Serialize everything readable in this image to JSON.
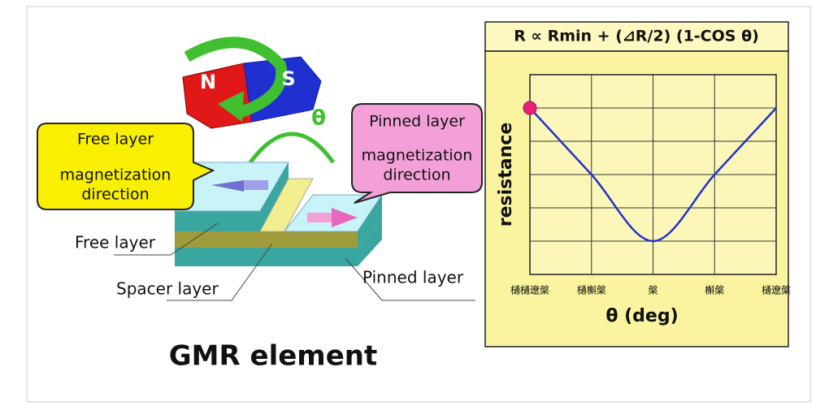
{
  "diagram": {
    "title": "GMR element",
    "theta": "θ",
    "magnet": {
      "n": "N",
      "s": "S"
    },
    "callouts": [
      {
        "lines": [
          "Free layer",
          "magnetization",
          "direction"
        ]
      },
      {
        "lines": [
          "Pinned layer",
          "magnetization",
          "direction"
        ]
      }
    ],
    "labels": [
      "Free layer",
      "Spacer layer",
      "Pinned layer"
    ]
  },
  "chart_data": {
    "type": "line",
    "title": "R ∝ Rmin + (⊿R/2) (1-COS θ)",
    "y_label": "resistance",
    "x_label": "θ (deg)",
    "categories": [
      "樋樋遼槃",
      "樋槲槃",
      "槃",
      "槲槃",
      "樋遼槃"
    ],
    "series": [
      {
        "color": "#2233cc",
        "values": [
          5,
          3,
          1,
          3,
          5
        ]
      }
    ],
    "ylim": [
      0,
      6
    ],
    "grid": true,
    "marker_color": "#e8207a"
  }
}
